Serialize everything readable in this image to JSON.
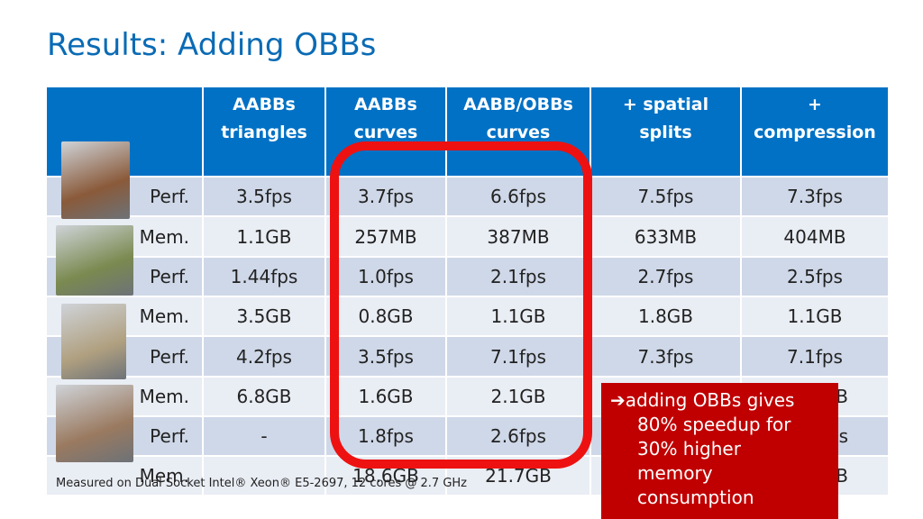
{
  "title": "Results: Adding OBBs",
  "table": {
    "header": [
      "AABBs triangles",
      "AABBs curves",
      "AABB/OBBs curves",
      "+ spatial splits",
      "+ compression"
    ],
    "rows": [
      [
        "Perf.",
        "3.5fps",
        "3.7fps",
        "6.6fps",
        "7.5fps",
        "7.3fps"
      ],
      [
        "Mem.",
        "1.1GB",
        "257MB",
        "387MB",
        "633MB",
        "404MB"
      ],
      [
        "Perf.",
        "1.44fps",
        "1.0fps",
        "2.1fps",
        "2.7fps",
        "2.5fps"
      ],
      [
        "Mem.",
        "3.5GB",
        "0.8GB",
        "1.1GB",
        "1.8GB",
        "1.1GB"
      ],
      [
        "Perf.",
        "4.2fps",
        "3.5fps",
        "7.1fps",
        "7.3fps",
        "7.1fps"
      ],
      [
        "Mem.",
        "6.8GB",
        "1.6GB",
        "2.1GB",
        null,
        "B"
      ],
      [
        "Perf.",
        "-",
        "1.8fps",
        "2.6fps",
        null,
        "s"
      ],
      [
        "Mem.",
        null,
        "18.6GB",
        "21.7GB",
        null,
        "B"
      ]
    ]
  },
  "callout": [
    "➔adding OBBs gives",
    "80% speedup for",
    "30% higher",
    "memory",
    "consumption"
  ],
  "footnote": "Measured on Dual Socket Intel® Xeon®  E5-2697, 12 cores @ 2.7 GHz"
}
